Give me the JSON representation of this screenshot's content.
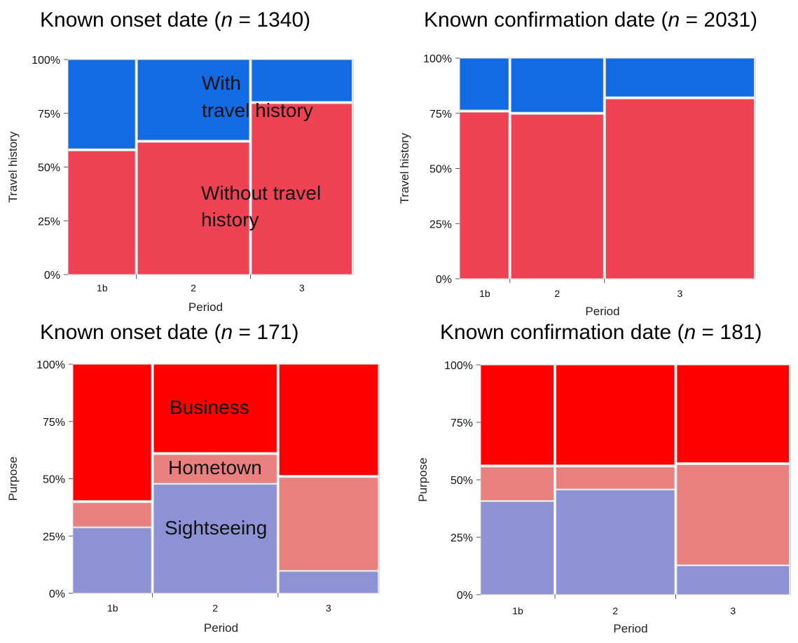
{
  "colors": {
    "with_travel": "#136BE3",
    "without_travel": "#F04255",
    "business": "#FF0000",
    "hometown": "#E98080",
    "sightseeing": "#8C92D4",
    "border": "#dcdcdc"
  },
  "chart_data": [
    {
      "type": "mosaic",
      "title_prefix": "Known onset date (",
      "title_n": "n",
      "title_suffix": " = 1340)",
      "xlabel": "Period",
      "ylabel": "Travel history",
      "ylim": [
        0,
        100
      ],
      "yticks": [
        "0%",
        "25%",
        "50%",
        "75%",
        "100%"
      ],
      "categories": [
        "1b",
        "2",
        "3"
      ],
      "widths": [
        0.24,
        0.4,
        0.36
      ],
      "series": [
        {
          "key": "without_travel",
          "values": [
            58,
            62,
            80
          ]
        },
        {
          "key": "with_travel",
          "values": [
            42,
            38,
            20
          ]
        }
      ],
      "annotations": [
        {
          "text": "With",
          "bind": "annotations.0"
        },
        {
          "text": "travel history",
          "bind": "annotations.1"
        },
        {
          "text": "Without travel",
          "bind": "annotations.2"
        },
        {
          "text": "history",
          "bind": "annotations.3"
        }
      ]
    },
    {
      "type": "mosaic",
      "title_prefix": "Known confirmation date (",
      "title_n": "n",
      "title_suffix": " = 2031)",
      "xlabel": "Period",
      "ylabel": "Travel history",
      "ylim": [
        0,
        100
      ],
      "yticks": [
        "0%",
        "25%",
        "50%",
        "75%",
        "100%"
      ],
      "categories": [
        "1b",
        "2",
        "3"
      ],
      "widths": [
        0.17,
        0.32,
        0.51
      ],
      "series": [
        {
          "key": "without_travel",
          "values": [
            76,
            75,
            82
          ]
        },
        {
          "key": "with_travel",
          "values": [
            24,
            25,
            18
          ]
        }
      ],
      "annotations": []
    },
    {
      "type": "mosaic",
      "title_prefix": "Known onset date (",
      "title_n": "n",
      "title_suffix": " = 171)",
      "xlabel": "Period",
      "ylabel": "Purpose",
      "ylim": [
        0,
        100
      ],
      "yticks": [
        "0%",
        "25%",
        "50%",
        "75%",
        "100%"
      ],
      "categories": [
        "1b",
        "2",
        "3"
      ],
      "widths": [
        0.26,
        0.41,
        0.33
      ],
      "series": [
        {
          "key": "sightseeing",
          "values": [
            29,
            48,
            10
          ]
        },
        {
          "key": "hometown",
          "values": [
            11,
            13,
            41
          ]
        },
        {
          "key": "business",
          "values": [
            60,
            39,
            49
          ]
        }
      ],
      "annotations": [
        {
          "text": "Business",
          "bind": "annotations.0"
        },
        {
          "text": "Hometown",
          "bind": "annotations.1"
        },
        {
          "text": "Sightseeing",
          "bind": "annotations.2"
        }
      ]
    },
    {
      "type": "mosaic",
      "title_prefix": "Known confirmation date (",
      "title_n": "n",
      "title_suffix": " = 181)",
      "xlabel": "Period",
      "ylabel": "Purpose",
      "ylim": [
        0,
        100
      ],
      "yticks": [
        "0%",
        "25%",
        "50%",
        "75%",
        "100%"
      ],
      "categories": [
        "1b",
        "2",
        "3"
      ],
      "widths": [
        0.24,
        0.39,
        0.37
      ],
      "series": [
        {
          "key": "sightseeing",
          "values": [
            41,
            46,
            13
          ]
        },
        {
          "key": "hometown",
          "values": [
            15,
            10,
            44
          ]
        },
        {
          "key": "business",
          "values": [
            44,
            44,
            43
          ]
        }
      ],
      "annotations": []
    }
  ]
}
